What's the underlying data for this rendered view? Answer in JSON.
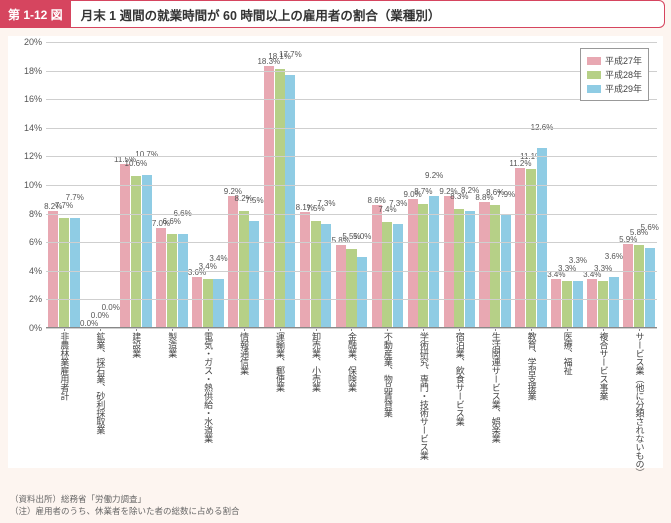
{
  "title_tag": "第 1-12 図",
  "title_text": "月末 1 週間の就業時間が 60 時間以上の雇用者の割合（業種別）",
  "chart": {
    "type": "bar",
    "ylim": [
      0,
      20
    ],
    "ytick_step": 2,
    "y_suffix": "%",
    "background_color": "#ffffff",
    "grid_color": "#cfcfcf",
    "series": [
      {
        "name": "平成27年",
        "color": "#e8a8b2"
      },
      {
        "name": "平成28年",
        "color": "#b6d087"
      },
      {
        "name": "平成29年",
        "color": "#8fcce4"
      }
    ],
    "categories": [
      "非農林業雇用者計",
      "鉱業、採石業、砂利採取業",
      "建設業",
      "製造業",
      "電気・ガス・熱供給・水道業",
      "情報通信業",
      "運輸業、郵便業",
      "卸売業、小売業",
      "金融業、保険業",
      "不動産業、物品賃貸業",
      "学術研究、専門・技術サービス業",
      "宿泊業、飲食サービス業",
      "生活関連サービス業、娯楽業",
      "教育、学習支援業",
      "医療、福祉",
      "複合サービス事業",
      "サービス業（他に分類されないもの）"
    ],
    "values": [
      [
        8.2,
        7.7,
        7.7
      ],
      [
        0.0,
        0.0,
        0.0
      ],
      [
        11.5,
        10.6,
        10.7
      ],
      [
        7.0,
        6.6,
        6.6
      ],
      [
        3.6,
        3.4,
        3.4
      ],
      [
        9.2,
        8.2,
        7.5
      ],
      [
        18.3,
        18.1,
        17.7
      ],
      [
        8.1,
        7.5,
        7.3
      ],
      [
        5.8,
        5.5,
        5.0
      ],
      [
        8.6,
        7.4,
        7.3
      ],
      [
        9.0,
        8.7,
        9.2
      ],
      [
        9.2,
        8.3,
        8.2
      ],
      [
        8.8,
        8.6,
        7.9
      ],
      [
        11.2,
        11.1,
        12.6
      ],
      [
        3.4,
        3.3,
        3.3
      ],
      [
        3.4,
        3.3,
        3.6
      ],
      [
        5.9,
        5.8,
        5.6
      ]
    ],
    "label_fontsize": 8
  },
  "footer_source": "（資料出所）総務省「労働力調査」",
  "footer_note": "（注）雇用者のうち、休業者を除いた者の総数に占める割合"
}
